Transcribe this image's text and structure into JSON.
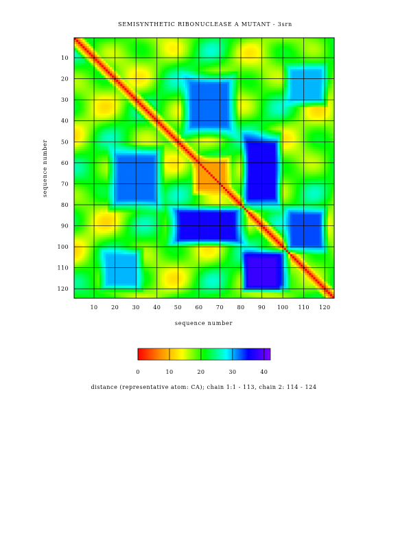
{
  "chart_data": {
    "type": "heatmap",
    "title": "SEMISYNTHETIC RIBONUCLEASE A MUTANT - 3srn",
    "xlabel": "sequence number",
    "ylabel": "sequence number",
    "n_residues": 124,
    "x_ticks": [
      "10",
      "20",
      "30",
      "40",
      "50",
      "60",
      "70",
      "80",
      "90",
      "100",
      "110",
      "120"
    ],
    "y_ticks": [
      "10",
      "20",
      "30",
      "40",
      "50",
      "60",
      "70",
      "80",
      "90",
      "100",
      "110",
      "120"
    ],
    "tick_values": [
      10,
      20,
      30,
      40,
      50,
      60,
      70,
      80,
      90,
      100,
      110,
      120
    ],
    "grid": true,
    "diagonal_value": 0,
    "approx_regions": [
      {
        "rows": [
          20,
          45
        ],
        "cols": [
          55,
          75
        ],
        "value": 32
      },
      {
        "rows": [
          55,
          80
        ],
        "cols": [
          20,
          40
        ],
        "value": 32
      },
      {
        "rows": [
          48,
          80
        ],
        "cols": [
          84,
          96
        ],
        "value": 36
      },
      {
        "rows": [
          84,
          96
        ],
        "cols": [
          48,
          80
        ],
        "value": 36
      },
      {
        "rows": [
          84,
          100
        ],
        "cols": [
          104,
          118
        ],
        "value": 33
      },
      {
        "rows": [
          104,
          118
        ],
        "cols": [
          84,
          100
        ],
        "value": 33
      },
      {
        "rows": [
          106,
          118
        ],
        "cols": [
          84,
          96
        ],
        "value": 38
      },
      {
        "rows": [
          16,
          30
        ],
        "cols": [
          104,
          118
        ],
        "value": 30
      },
      {
        "rows": [
          104,
          118
        ],
        "cols": [
          16,
          30
        ],
        "value": 30
      },
      {
        "rows": [
          60,
          72
        ],
        "cols": [
          60,
          72
        ],
        "value": 8
      }
    ],
    "colorbar": {
      "min": 0,
      "max": 42,
      "ticks": [
        "0",
        "10",
        "20",
        "30",
        "40"
      ],
      "tick_values": [
        0,
        10,
        20,
        30,
        40
      ],
      "colors": [
        "#ff0000",
        "#ff8c00",
        "#ffff00",
        "#00ff00",
        "#00ffff",
        "#0000ff",
        "#8000ff"
      ],
      "label": "distance  (representative atom: CA); chain 1:1 - 113, chain 2: 114 - 124"
    }
  }
}
